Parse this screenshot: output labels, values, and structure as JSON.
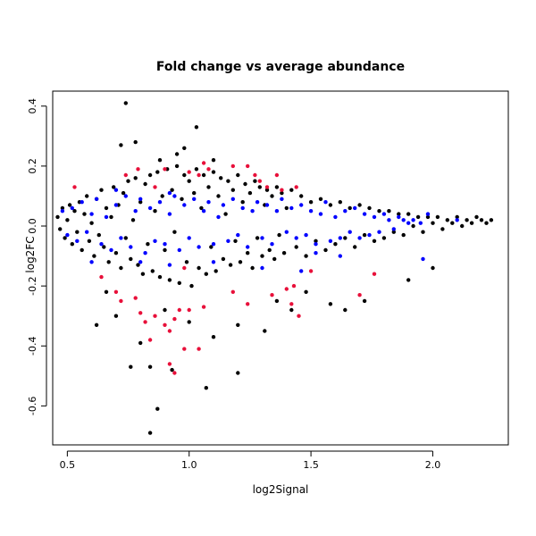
{
  "chart_data": {
    "type": "scatter",
    "title": "Fold change vs average abundance",
    "xlabel": "log2Signal",
    "ylabel": "log2FC",
    "xlim": [
      0.44,
      2.31
    ],
    "ylim": [
      -0.73,
      0.45
    ],
    "x_ticks": [
      0.5,
      1.0,
      1.5,
      2.0
    ],
    "x_tick_labels": [
      "0.5",
      "1.0",
      "1.5",
      "2.0"
    ],
    "y_ticks": [
      -0.6,
      -0.4,
      -0.2,
      0.0,
      0.2,
      0.4
    ],
    "y_tick_labels": [
      "-0.6",
      "-0.4",
      "-0.2",
      "0.0",
      "0.2",
      "0.4"
    ],
    "grid": false,
    "legend": "none",
    "colors": {
      "black": "#000000",
      "blue": "#0000ff",
      "red": "#e8103a"
    },
    "series": [
      {
        "color": "black",
        "points": [
          [
            0.46,
            0.03
          ],
          [
            0.47,
            -0.01
          ],
          [
            0.48,
            0.06
          ],
          [
            0.49,
            -0.04
          ],
          [
            0.5,
            0.02
          ],
          [
            0.51,
            0.07
          ],
          [
            0.52,
            -0.06
          ],
          [
            0.53,
            0.05
          ],
          [
            0.54,
            -0.02
          ],
          [
            0.55,
            0.08
          ],
          [
            0.56,
            -0.08
          ],
          [
            0.57,
            0.04
          ],
          [
            0.58,
            0.1
          ],
          [
            0.59,
            -0.05
          ],
          [
            0.6,
            0.01
          ],
          [
            0.61,
            -0.1
          ],
          [
            0.62,
            0.09
          ],
          [
            0.63,
            -0.03
          ],
          [
            0.64,
            0.12
          ],
          [
            0.65,
            -0.07
          ],
          [
            0.66,
            0.06
          ],
          [
            0.67,
            -0.12
          ],
          [
            0.68,
            0.03
          ],
          [
            0.69,
            0.13
          ],
          [
            0.7,
            -0.09
          ],
          [
            0.71,
            0.07
          ],
          [
            0.72,
            -0.14
          ],
          [
            0.73,
            0.11
          ],
          [
            0.74,
            -0.04
          ],
          [
            0.75,
            0.15
          ],
          [
            0.76,
            -0.11
          ],
          [
            0.77,
            0.02
          ],
          [
            0.78,
            0.16
          ],
          [
            0.79,
            -0.13
          ],
          [
            0.8,
            0.08
          ],
          [
            0.81,
            -0.16
          ],
          [
            0.82,
            0.14
          ],
          [
            0.83,
            -0.06
          ],
          [
            0.84,
            0.17
          ],
          [
            0.85,
            -0.15
          ],
          [
            0.86,
            0.05
          ],
          [
            0.87,
            0.18
          ],
          [
            0.88,
            -0.17
          ],
          [
            0.89,
            0.1
          ],
          [
            0.9,
            -0.08
          ],
          [
            0.91,
            0.19
          ],
          [
            0.92,
            -0.18
          ],
          [
            0.93,
            0.12
          ],
          [
            0.94,
            -0.02
          ],
          [
            0.95,
            0.2
          ],
          [
            0.96,
            -0.19
          ],
          [
            0.97,
            0.09
          ],
          [
            0.98,
            0.17
          ],
          [
            0.99,
            -0.12
          ],
          [
            1.0,
            0.15
          ],
          [
            1.01,
            -0.2
          ],
          [
            1.02,
            0.11
          ],
          [
            1.03,
            0.19
          ],
          [
            1.04,
            -0.14
          ],
          [
            1.05,
            0.06
          ],
          [
            1.06,
            0.17
          ],
          [
            1.07,
            -0.16
          ],
          [
            1.08,
            0.13
          ],
          [
            1.09,
            -0.07
          ],
          [
            1.1,
            0.18
          ],
          [
            1.11,
            -0.15
          ],
          [
            1.12,
            0.1
          ],
          [
            1.13,
            0.16
          ],
          [
            1.14,
            -0.11
          ],
          [
            1.15,
            0.04
          ],
          [
            1.16,
            0.15
          ],
          [
            1.17,
            -0.13
          ],
          [
            1.18,
            0.12
          ],
          [
            1.19,
            -0.05
          ],
          [
            1.2,
            0.17
          ],
          [
            1.21,
            -0.12
          ],
          [
            1.22,
            0.08
          ],
          [
            1.23,
            0.14
          ],
          [
            1.24,
            -0.09
          ],
          [
            1.25,
            0.11
          ],
          [
            1.26,
            -0.14
          ],
          [
            1.27,
            0.15
          ],
          [
            1.28,
            -0.04
          ],
          [
            1.29,
            0.13
          ],
          [
            1.3,
            -0.1
          ],
          [
            1.31,
            0.07
          ],
          [
            1.32,
            0.12
          ],
          [
            1.33,
            -0.08
          ],
          [
            1.34,
            0.1
          ],
          [
            1.35,
            -0.11
          ],
          [
            1.36,
            0.13
          ],
          [
            1.37,
            -0.03
          ],
          [
            1.38,
            0.11
          ],
          [
            1.39,
            -0.09
          ],
          [
            1.4,
            0.06
          ],
          [
            1.42,
            0.12
          ],
          [
            1.44,
            -0.07
          ],
          [
            1.46,
            0.1
          ],
          [
            1.48,
            -0.1
          ],
          [
            1.5,
            0.08
          ],
          [
            1.52,
            -0.05
          ],
          [
            1.54,
            0.09
          ],
          [
            1.56,
            -0.08
          ],
          [
            1.58,
            0.07
          ],
          [
            1.6,
            -0.06
          ],
          [
            1.62,
            0.08
          ],
          [
            1.64,
            -0.04
          ],
          [
            1.66,
            0.06
          ],
          [
            1.68,
            -0.07
          ],
          [
            1.7,
            0.07
          ],
          [
            1.72,
            -0.03
          ],
          [
            1.74,
            0.06
          ],
          [
            1.76,
            -0.05
          ],
          [
            1.78,
            0.05
          ],
          [
            1.8,
            -0.04
          ],
          [
            1.82,
            0.05
          ],
          [
            1.84,
            -0.02
          ],
          [
            1.86,
            0.04
          ],
          [
            1.88,
            -0.03
          ],
          [
            1.9,
            0.04
          ],
          [
            1.92,
            0.0
          ],
          [
            1.94,
            0.03
          ],
          [
            1.96,
            -0.02
          ],
          [
            1.98,
            0.03
          ],
          [
            2.0,
            0.01
          ],
          [
            2.02,
            0.03
          ],
          [
            2.04,
            -0.01
          ],
          [
            2.06,
            0.02
          ],
          [
            2.08,
            0.01
          ],
          [
            2.1,
            0.03
          ],
          [
            2.12,
            0.0
          ],
          [
            2.14,
            0.02
          ],
          [
            2.16,
            0.01
          ],
          [
            2.18,
            0.03
          ],
          [
            2.2,
            0.02
          ],
          [
            2.22,
            0.01
          ],
          [
            2.24,
            0.02
          ],
          [
            0.74,
            0.41
          ],
          [
            1.03,
            0.33
          ],
          [
            0.78,
            0.28
          ],
          [
            0.72,
            0.27
          ],
          [
            0.98,
            0.26
          ],
          [
            0.88,
            0.22
          ],
          [
            1.1,
            0.22
          ],
          [
            0.95,
            0.24
          ],
          [
            0.76,
            -0.47
          ],
          [
            0.84,
            -0.47
          ],
          [
            0.8,
            -0.39
          ],
          [
            0.93,
            -0.48
          ],
          [
            1.2,
            -0.49
          ],
          [
            0.87,
            -0.61
          ],
          [
            1.07,
            -0.54
          ],
          [
            0.84,
            -0.69
          ],
          [
            0.62,
            -0.33
          ],
          [
            0.7,
            -0.3
          ],
          [
            0.9,
            -0.28
          ],
          [
            1.0,
            -0.32
          ],
          [
            1.1,
            -0.37
          ],
          [
            1.2,
            -0.33
          ],
          [
            1.31,
            -0.35
          ],
          [
            1.42,
            -0.28
          ],
          [
            1.58,
            -0.26
          ],
          [
            1.64,
            -0.28
          ],
          [
            1.72,
            -0.25
          ],
          [
            1.9,
            -0.18
          ],
          [
            2.0,
            -0.14
          ],
          [
            1.36,
            -0.25
          ],
          [
            1.48,
            -0.22
          ],
          [
            0.66,
            -0.22
          ]
        ]
      },
      {
        "color": "blue",
        "points": [
          [
            0.48,
            0.05
          ],
          [
            0.5,
            -0.03
          ],
          [
            0.52,
            0.06
          ],
          [
            0.54,
            -0.05
          ],
          [
            0.56,
            0.08
          ],
          [
            0.58,
            -0.02
          ],
          [
            0.6,
            0.04
          ],
          [
            0.62,
            0.09
          ],
          [
            0.64,
            -0.06
          ],
          [
            0.66,
            0.03
          ],
          [
            0.68,
            -0.08
          ],
          [
            0.7,
            0.07
          ],
          [
            0.72,
            -0.04
          ],
          [
            0.74,
            0.1
          ],
          [
            0.76,
            -0.07
          ],
          [
            0.78,
            0.05
          ],
          [
            0.8,
            0.09
          ],
          [
            0.82,
            -0.09
          ],
          [
            0.84,
            0.06
          ],
          [
            0.86,
            -0.05
          ],
          [
            0.88,
            0.08
          ],
          [
            0.9,
            -0.06
          ],
          [
            0.92,
            0.04
          ],
          [
            0.94,
            0.1
          ],
          [
            0.96,
            -0.08
          ],
          [
            0.98,
            0.07
          ],
          [
            1.0,
            -0.04
          ],
          [
            1.02,
            0.09
          ],
          [
            1.04,
            -0.07
          ],
          [
            1.06,
            0.05
          ],
          [
            1.08,
            0.08
          ],
          [
            1.1,
            -0.06
          ],
          [
            1.12,
            0.03
          ],
          [
            1.14,
            0.07
          ],
          [
            1.16,
            -0.05
          ],
          [
            1.18,
            0.09
          ],
          [
            1.2,
            -0.03
          ],
          [
            1.22,
            0.06
          ],
          [
            1.24,
            -0.07
          ],
          [
            1.26,
            0.05
          ],
          [
            1.28,
            0.08
          ],
          [
            1.3,
            -0.04
          ],
          [
            1.32,
            0.07
          ],
          [
            1.34,
            -0.06
          ],
          [
            1.36,
            0.05
          ],
          [
            1.38,
            0.09
          ],
          [
            1.4,
            -0.02
          ],
          [
            1.42,
            0.06
          ],
          [
            1.44,
            -0.04
          ],
          [
            1.46,
            0.07
          ],
          [
            1.48,
            -0.03
          ],
          [
            1.5,
            0.05
          ],
          [
            1.52,
            -0.06
          ],
          [
            1.54,
            0.04
          ],
          [
            1.56,
            0.08
          ],
          [
            1.58,
            -0.05
          ],
          [
            1.6,
            0.03
          ],
          [
            1.62,
            -0.04
          ],
          [
            1.64,
            0.05
          ],
          [
            1.66,
            -0.02
          ],
          [
            1.68,
            0.06
          ],
          [
            1.7,
            -0.04
          ],
          [
            1.72,
            0.04
          ],
          [
            1.74,
            -0.03
          ],
          [
            1.76,
            0.03
          ],
          [
            1.78,
            -0.02
          ],
          [
            1.8,
            0.04
          ],
          [
            1.82,
            0.02
          ],
          [
            1.84,
            -0.01
          ],
          [
            1.86,
            0.03
          ],
          [
            1.88,
            0.02
          ],
          [
            1.9,
            0.01
          ],
          [
            1.92,
            0.02
          ],
          [
            1.95,
            0.01
          ],
          [
            0.6,
            -0.12
          ],
          [
            0.8,
            -0.12
          ],
          [
            0.92,
            -0.13
          ],
          [
            1.1,
            -0.12
          ],
          [
            1.3,
            -0.14
          ],
          [
            1.46,
            -0.15
          ],
          [
            1.62,
            -0.1
          ],
          [
            1.96,
            -0.11
          ],
          [
            2.1,
            0.02
          ],
          [
            1.98,
            0.04
          ],
          [
            0.92,
            0.11
          ],
          [
            0.7,
            0.12
          ],
          [
            1.52,
            -0.09
          ]
        ]
      },
      {
        "color": "red",
        "points": [
          [
            0.53,
            0.13
          ],
          [
            0.74,
            0.17
          ],
          [
            0.79,
            0.19
          ],
          [
            0.86,
            0.13
          ],
          [
            0.9,
            0.19
          ],
          [
            1.0,
            0.18
          ],
          [
            1.04,
            0.17
          ],
          [
            1.08,
            0.19
          ],
          [
            1.06,
            0.21
          ],
          [
            1.18,
            0.2
          ],
          [
            1.24,
            0.2
          ],
          [
            1.27,
            0.17
          ],
          [
            1.29,
            0.15
          ],
          [
            1.32,
            0.13
          ],
          [
            1.38,
            0.12
          ],
          [
            1.44,
            0.13
          ],
          [
            1.36,
            0.17
          ],
          [
            0.64,
            -0.17
          ],
          [
            0.7,
            -0.22
          ],
          [
            0.72,
            -0.25
          ],
          [
            0.78,
            -0.24
          ],
          [
            0.8,
            -0.29
          ],
          [
            0.82,
            -0.32
          ],
          [
            0.86,
            -0.3
          ],
          [
            0.9,
            -0.33
          ],
          [
            0.92,
            -0.35
          ],
          [
            0.94,
            -0.31
          ],
          [
            0.96,
            -0.28
          ],
          [
            0.98,
            -0.41
          ],
          [
            1.04,
            -0.41
          ],
          [
            0.84,
            -0.38
          ],
          [
            0.92,
            -0.46
          ],
          [
            0.94,
            -0.49
          ],
          [
            1.0,
            -0.28
          ],
          [
            1.06,
            -0.27
          ],
          [
            1.18,
            -0.22
          ],
          [
            1.24,
            -0.26
          ],
          [
            1.34,
            -0.23
          ],
          [
            1.4,
            -0.21
          ],
          [
            1.42,
            -0.26
          ],
          [
            1.45,
            -0.3
          ],
          [
            1.43,
            -0.2
          ],
          [
            1.7,
            -0.23
          ],
          [
            1.76,
            -0.16
          ],
          [
            1.5,
            -0.15
          ],
          [
            0.98,
            -0.14
          ]
        ]
      }
    ]
  }
}
